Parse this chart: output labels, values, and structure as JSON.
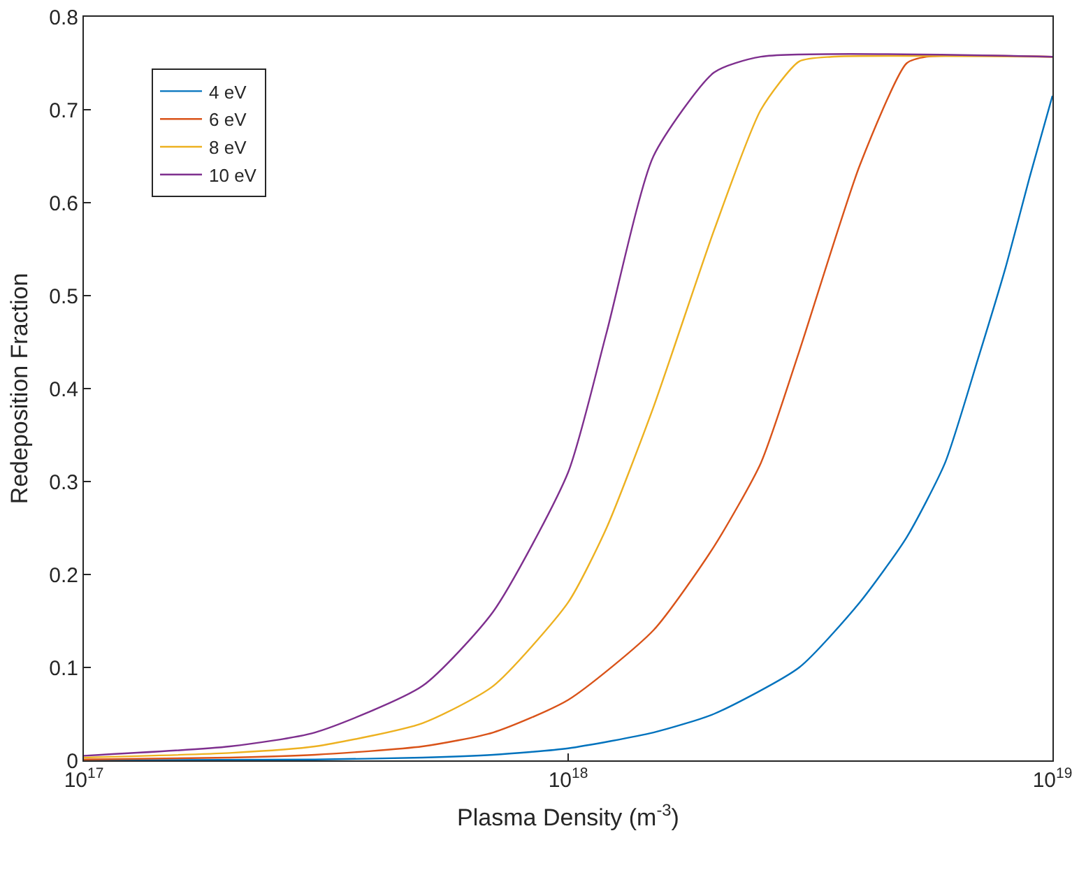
{
  "chart_data": {
    "type": "line",
    "xlabel": "Plasma Density (m$^{-3}$)",
    "ylabel": "Redeposition Fraction",
    "log": "x",
    "xlim": [
      1e+17,
      1e+19
    ],
    "xticks": [
      {
        "value": 1e+17,
        "label": "10$^{17}$"
      },
      {
        "value": 1e+18,
        "label": "10$^{18}$"
      },
      {
        "value": 1e+19,
        "label": "10$^{19}$"
      }
    ],
    "ylim": [
      0,
      0.8
    ],
    "yticks": [
      0,
      0.1,
      0.2,
      0.3,
      0.4,
      0.5,
      0.6,
      0.7,
      0.8
    ],
    "grid": false,
    "legend": "top left",
    "marker": "none",
    "line_style": "solid",
    "series": [
      {
        "name": "4 eV",
        "color": "#0072bd",
        "x": [
          1e+17,
          3e+17,
          5e+17,
          7e+17,
          1e+18,
          1.5e+18,
          2e+18,
          3e+18,
          4e+18,
          5e+18,
          6e+18,
          7e+18,
          8e+18,
          9e+18,
          1e+19
        ],
        "values": [
          0,
          0.001,
          0.003,
          0.006,
          0.013,
          0.03,
          0.05,
          0.1,
          0.17,
          0.24,
          0.32,
          0.43,
          0.53,
          0.63,
          0.715
        ]
      },
      {
        "name": "6 eV",
        "color": "#d95319",
        "x": [
          1e+17,
          2e+17,
          3e+17,
          5e+17,
          7e+17,
          1e+18,
          1.5e+18,
          2e+18,
          2.5e+18,
          3e+18,
          4e+18,
          5e+18,
          5.5e+18,
          1e+19
        ],
        "values": [
          0.001,
          0.003,
          0.006,
          0.015,
          0.03,
          0.065,
          0.14,
          0.23,
          0.32,
          0.44,
          0.64,
          0.75,
          0.757,
          0.757
        ]
      },
      {
        "name": "8 eV",
        "color": "#edb120",
        "x": [
          1e+17,
          2e+17,
          3e+17,
          5e+17,
          7e+17,
          1e+18,
          1.2e+18,
          1.5e+18,
          2e+18,
          2.5e+18,
          3e+18,
          3.5e+18,
          1e+19
        ],
        "values": [
          0.003,
          0.008,
          0.015,
          0.04,
          0.08,
          0.17,
          0.25,
          0.38,
          0.57,
          0.7,
          0.752,
          0.757,
          0.757
        ]
      },
      {
        "name": "10 eV",
        "color": "#7e2f8e",
        "x": [
          1e+17,
          2e+17,
          3e+17,
          5e+17,
          7e+17,
          1e+18,
          1.2e+18,
          1.5e+18,
          2e+18,
          2.5e+18,
          1e+19
        ],
        "values": [
          0.005,
          0.015,
          0.03,
          0.08,
          0.16,
          0.31,
          0.46,
          0.65,
          0.74,
          0.757,
          0.757
        ]
      }
    ]
  }
}
